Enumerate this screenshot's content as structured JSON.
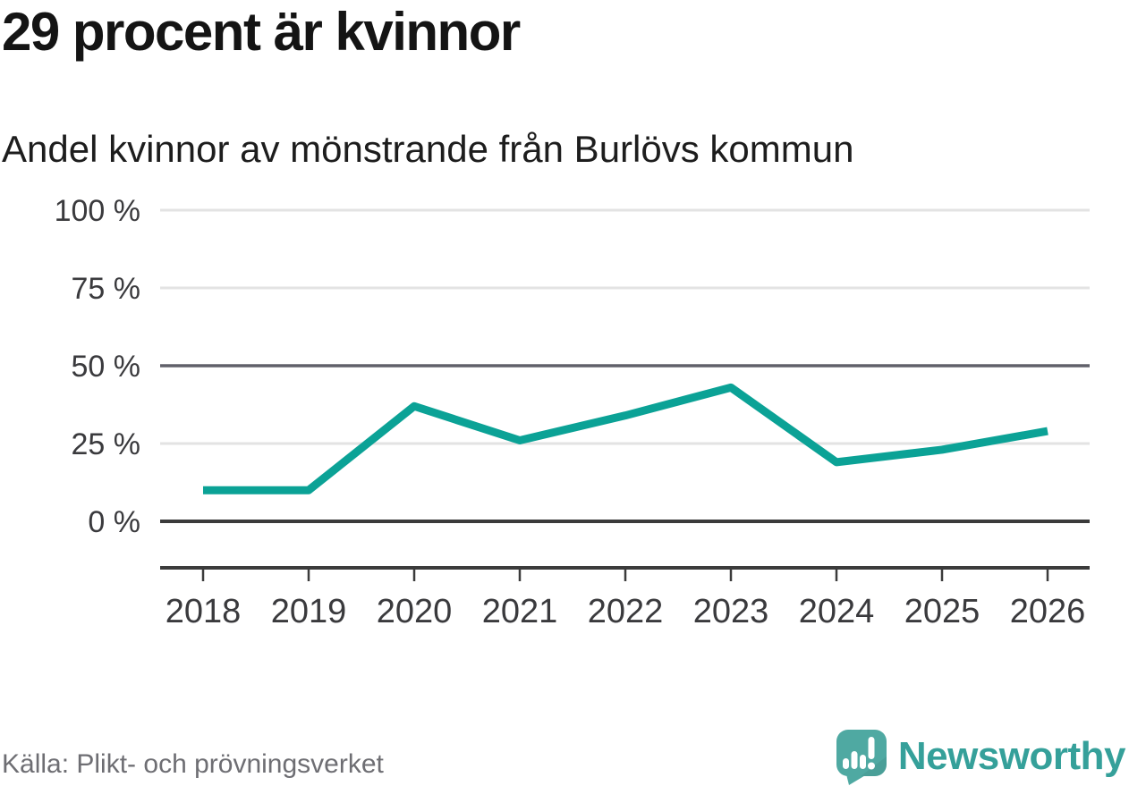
{
  "header": {
    "title": "29 procent är kvinnor",
    "subtitle": "Andel kvinnor av mönstrande från Burlövs kommun"
  },
  "chart_data": {
    "type": "line",
    "title": "29 procent är kvinnor",
    "subtitle": "Andel kvinnor av mönstrande från Burlövs kommun",
    "x": [
      "2018",
      "2019",
      "2020",
      "2021",
      "2022",
      "2023",
      "2024",
      "2025",
      "2026"
    ],
    "series": [
      {
        "name": "Andel kvinnor av mönstrande (%)",
        "values": [
          10,
          10,
          37,
          26,
          34,
          43,
          19,
          23,
          29
        ]
      }
    ],
    "ylim": [
      0,
      100
    ],
    "y_ticks": [
      0,
      25,
      50,
      75,
      100
    ],
    "y_tick_suffix": " %",
    "grid": "horizontal",
    "legend": "none",
    "line_color": "#0ba296",
    "gridline_light_color": "#e3e3e3",
    "gridline_mid_color": "#60606a",
    "axis_color": "#3b3b3b",
    "label_color": "#3a3a3d"
  },
  "footer": {
    "source": "Källa: Plikt- och prövningsverket",
    "brand": "Newsworthy",
    "brand_color": "#35a09a",
    "logo_bubble_color": "#4fa9a2"
  }
}
